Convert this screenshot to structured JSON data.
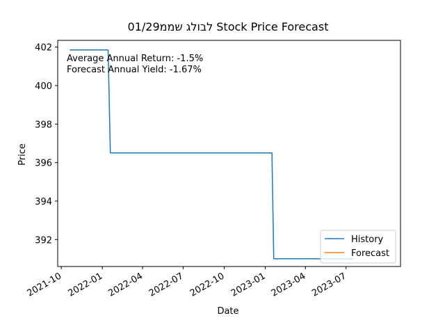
{
  "chart_data": {
    "type": "line",
    "title": "01/29לבולג שממ Stock Price Forecast",
    "xlabel": "Date",
    "ylabel": "Price",
    "x_ticks": [
      "2021-10",
      "2022-01",
      "2022-04",
      "2022-07",
      "2022-10",
      "2023-01",
      "2023-04",
      "2023-07"
    ],
    "y_ticks": [
      "392",
      "394",
      "396",
      "398",
      "400",
      "402"
    ],
    "xlim": [
      "2021-09-23",
      "2023-10-31"
    ],
    "ylim": [
      390.6,
      402.35
    ],
    "grid": false,
    "legend_placement": "lower-right",
    "annotations": [
      "Average Annual Return: -1.5%",
      "Forecast Annual Yield: -1.67%"
    ],
    "series": [
      {
        "name": "History",
        "color": "#1f77b4",
        "points": [
          {
            "x": "2021-10-20",
            "y": 401.85
          },
          {
            "x": "2022-01-14",
            "y": 401.85
          },
          {
            "x": "2022-01-19",
            "y": 396.5
          },
          {
            "x": "2023-01-16",
            "y": 396.5
          },
          {
            "x": "2023-01-20",
            "y": 391.0
          },
          {
            "x": "2023-07-18",
            "y": 391.0
          }
        ]
      },
      {
        "name": "Forecast",
        "color": "#ff7f0e",
        "points": []
      }
    ]
  }
}
